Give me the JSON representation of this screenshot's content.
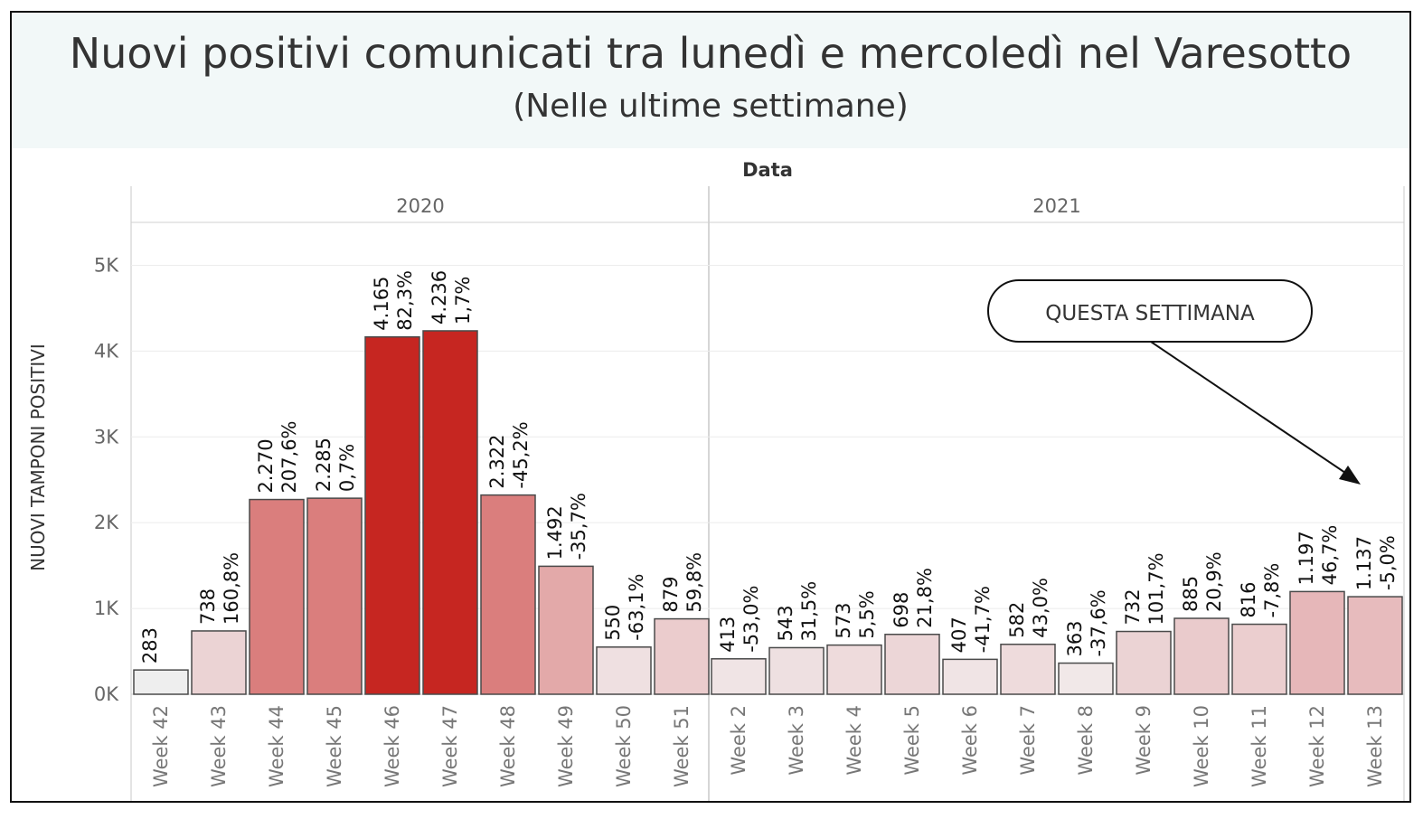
{
  "header": {
    "title": "Nuovi positivi comunicati tra lunedì e mercoledì nel Varesotto",
    "subtitle": "(Nelle ultime settimane)"
  },
  "chart_data": {
    "type": "bar",
    "title": "Nuovi positivi comunicati tra lunedì e mercoledì nel Varesotto",
    "subtitle": "(Nelle ultime settimane)",
    "column_header": "Data",
    "ylabel": "NUOVI TAMPONI POSITIVI",
    "ylim": [
      0,
      5500
    ],
    "yticks": [
      0,
      1000,
      2000,
      3000,
      4000,
      5000
    ],
    "ytick_labels": [
      "0K",
      "1K",
      "2K",
      "3K",
      "4K",
      "5K"
    ],
    "grid": true,
    "color_scale": {
      "low": "#f2f2f2",
      "mid": "#e3a2a4",
      "high": "#c62621"
    },
    "groups": [
      {
        "year": "2020",
        "categories": [
          "Week 42",
          "Week 43",
          "Week 44",
          "Week 45",
          "Week 46",
          "Week 47",
          "Week 48",
          "Week 49",
          "Week 50",
          "Week 51"
        ],
        "values": [
          283,
          738,
          2270,
          2285,
          4165,
          4236,
          2322,
          1492,
          550,
          879
        ],
        "value_labels": [
          "283",
          "738",
          "2.270",
          "2.285",
          "4.165",
          "4.236",
          "2.322",
          "1.492",
          "550",
          "879"
        ],
        "change_labels": [
          "",
          "160,8%",
          "207,6%",
          "0,7%",
          "82,3%",
          "1,7%",
          "-45,2%",
          "-35,7%",
          "-63,1%",
          "59,8%"
        ],
        "colors": [
          "#eeeeee",
          "#ebd3d4",
          "#da7e7d",
          "#da7e7d",
          "#c62621",
          "#c62621",
          "#da7e7d",
          "#e3a9a9",
          "#efe0e1",
          "#ebcccd"
        ]
      },
      {
        "year": "2021",
        "categories": [
          "Week 2",
          "Week 3",
          "Week 4",
          "Week 5",
          "Week 6",
          "Week 7",
          "Week 8",
          "Week 9",
          "Week 10",
          "Week 11",
          "Week 12",
          "Week 13"
        ],
        "values": [
          413,
          543,
          573,
          698,
          407,
          582,
          363,
          732,
          885,
          816,
          1197,
          1137
        ],
        "value_labels": [
          "413",
          "543",
          "573",
          "698",
          "407",
          "582",
          "363",
          "732",
          "885",
          "816",
          "1.197",
          "1.137"
        ],
        "change_labels": [
          "-53,0%",
          "31,5%",
          "5,5%",
          "21,8%",
          "-41,7%",
          "43,0%",
          "-37,6%",
          "101,7%",
          "20,9%",
          "-7,8%",
          "46,7%",
          "-5,0%"
        ],
        "colors": [
          "#f0e4e5",
          "#eee0e1",
          "#eedbdc",
          "#ecd6d7",
          "#f0e4e5",
          "#eedbdc",
          "#f1e8e8",
          "#ebd3d4",
          "#eacbcc",
          "#ebcecf",
          "#e6b7b9",
          "#e7bbbd"
        ]
      }
    ],
    "annotation": {
      "text": "QUESTA SETTIMANA",
      "target_category": "Week 13",
      "target_year": "2021"
    }
  }
}
